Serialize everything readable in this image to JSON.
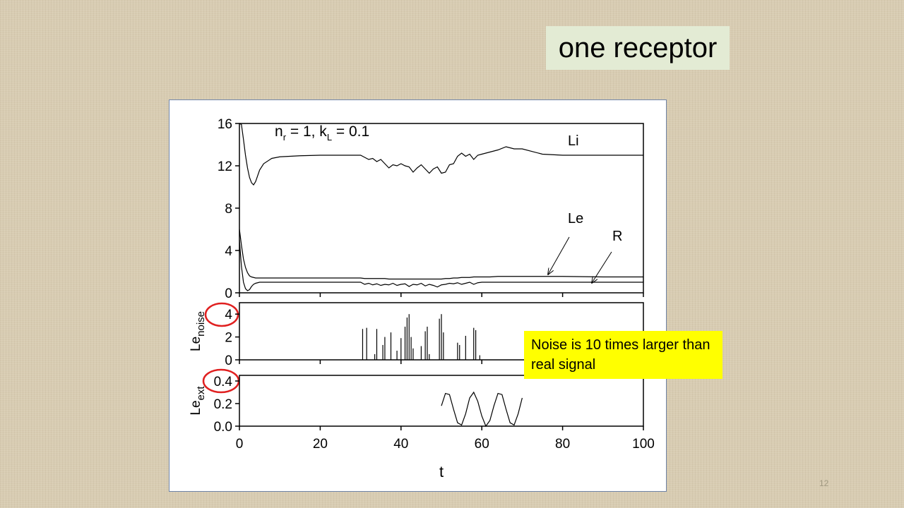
{
  "slide": {
    "title": "one receptor",
    "callout": "Noise is 10 times larger than real signal",
    "page_number": "12"
  },
  "chart_data": [
    {
      "type": "line",
      "annotation": [
        "n",
        "r",
        " = 1, k",
        "L",
        " = 0.1"
      ],
      "x": [
        0,
        0.5,
        1,
        1.5,
        2,
        2.5,
        3,
        3.5,
        4,
        5,
        6,
        8,
        10,
        15,
        20,
        25,
        30,
        31,
        32,
        33,
        34,
        35,
        36,
        37,
        38,
        39,
        40,
        41,
        42,
        43,
        44,
        45,
        46,
        47,
        48,
        49,
        50,
        51,
        52,
        53,
        54,
        55,
        56,
        57,
        58,
        59,
        60,
        62,
        64,
        66,
        68,
        70,
        75,
        80,
        90,
        100
      ],
      "series": [
        {
          "name": "Li",
          "color": "#000000",
          "values": [
            16,
            15.9,
            14.5,
            13,
            11.8,
            10.9,
            10.4,
            10.2,
            10.5,
            11.6,
            12.2,
            12.7,
            12.85,
            12.95,
            13,
            13,
            13,
            12.8,
            12.6,
            12.7,
            12.4,
            12.6,
            12.2,
            11.8,
            12.1,
            12.0,
            12.2,
            12.0,
            11.9,
            11.4,
            11.8,
            12.1,
            11.7,
            11.3,
            11.7,
            11.9,
            11.3,
            11.4,
            12.1,
            12.2,
            12.9,
            13.2,
            12.9,
            13.1,
            12.6,
            13.0,
            13.1,
            13.3,
            13.5,
            13.8,
            13.6,
            13.6,
            13.1,
            13,
            13,
            13
          ]
        },
        {
          "name": "Le",
          "color": "#000000",
          "values": [
            6,
            4.5,
            3.2,
            2.4,
            1.9,
            1.6,
            1.5,
            1.45,
            1.4,
            1.4,
            1.4,
            1.4,
            1.4,
            1.4,
            1.4,
            1.4,
            1.4,
            1.35,
            1.35,
            1.35,
            1.35,
            1.35,
            1.35,
            1.3,
            1.3,
            1.3,
            1.3,
            1.3,
            1.3,
            1.3,
            1.3,
            1.3,
            1.3,
            1.3,
            1.3,
            1.3,
            1.3,
            1.35,
            1.35,
            1.4,
            1.4,
            1.45,
            1.45,
            1.45,
            1.5,
            1.5,
            1.5,
            1.5,
            1.55,
            1.55,
            1.55,
            1.55,
            1.55,
            1.55,
            1.5,
            1.5
          ]
        },
        {
          "name": "R",
          "color": "#000000",
          "values": [
            5,
            2.5,
            1.0,
            0.4,
            0.2,
            0.3,
            0.6,
            0.8,
            0.9,
            1.0,
            1.0,
            1.0,
            1.0,
            1.0,
            1.0,
            1.0,
            1.0,
            0.8,
            0.9,
            0.75,
            0.85,
            0.7,
            0.8,
            0.75,
            0.9,
            0.7,
            0.8,
            0.85,
            0.6,
            0.8,
            0.75,
            0.9,
            0.65,
            0.8,
            0.7,
            0.55,
            0.75,
            0.8,
            0.9,
            0.85,
            0.95,
            0.8,
            0.9,
            1.0,
            0.8,
            0.95,
            1.0,
            1.0,
            1.0,
            1.0,
            1.0,
            1.0,
            1.0,
            1.0,
            1.0,
            1.0
          ]
        }
      ],
      "xlim": [
        0,
        100
      ],
      "xticks": [
        0,
        20,
        40,
        60,
        80,
        100
      ],
      "ylim": [
        0,
        16
      ],
      "yticks": [
        0,
        4,
        8,
        12,
        16
      ]
    },
    {
      "type": "stem",
      "ylabel": "Le",
      "ylabel_sub": "noise",
      "color": "#000000",
      "x": [
        30.5,
        31.5,
        33.5,
        34,
        35.5,
        36,
        37.5,
        39,
        40,
        41,
        41.5,
        42,
        42.5,
        43,
        45,
        46,
        46.5,
        47,
        49.5,
        50,
        50.5,
        54,
        54.5,
        56,
        58,
        58.5,
        59.5
      ],
      "values": [
        2.7,
        2.8,
        0.5,
        2.7,
        1.3,
        2.0,
        2.4,
        0.8,
        1.9,
        2.9,
        3.7,
        4.0,
        2.0,
        1.0,
        1.2,
        2.5,
        2.9,
        0.5,
        3.6,
        4.0,
        2.4,
        1.5,
        1.3,
        2.1,
        2.8,
        2.6,
        0.4
      ],
      "xlim": [
        0,
        100
      ],
      "xticks": [
        0,
        20,
        40,
        60,
        80,
        100
      ],
      "ylim": [
        0,
        5
      ],
      "yticks": [
        0,
        2,
        4
      ]
    },
    {
      "type": "line",
      "ylabel": "Le",
      "ylabel_sub": "ext",
      "xlabel": "t",
      "color": "#000000",
      "x": [
        50,
        51,
        52,
        53,
        54,
        55,
        56,
        57,
        58,
        59,
        60,
        61,
        62,
        63,
        64,
        65,
        66,
        67,
        68,
        69,
        70
      ],
      "values": [
        0.18,
        0.29,
        0.28,
        0.15,
        0.03,
        0.01,
        0.11,
        0.25,
        0.3,
        0.22,
        0.09,
        0.0,
        0.05,
        0.18,
        0.29,
        0.28,
        0.15,
        0.03,
        0.01,
        0.11,
        0.25
      ],
      "xlim": [
        0,
        100
      ],
      "xticks": [
        0,
        20,
        40,
        60,
        80,
        100
      ],
      "ylim": [
        0,
        0.45
      ],
      "yticks": [
        {
          "value": 0,
          "label": "0.0"
        },
        0.2,
        0.4
      ]
    }
  ]
}
